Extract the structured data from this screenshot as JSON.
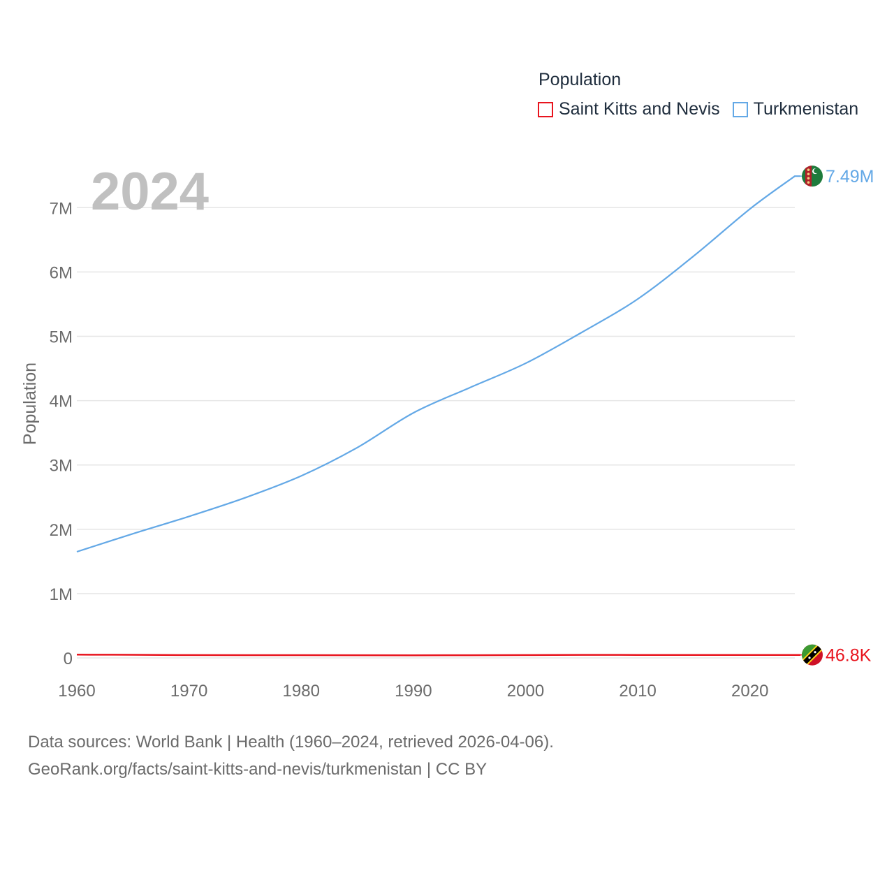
{
  "chart_data": {
    "type": "line",
    "title": "",
    "year_label": "2024",
    "ylabel": "Population",
    "xlabel": "",
    "xlim": [
      1960,
      2024
    ],
    "ylim": [
      0,
      7500000
    ],
    "x_ticks": [
      1960,
      1970,
      1980,
      1990,
      2000,
      2010,
      2020
    ],
    "x_tick_labels": [
      "1960",
      "1970",
      "1980",
      "1990",
      "2000",
      "2010",
      "2020"
    ],
    "y_ticks": [
      0,
      1000000,
      2000000,
      3000000,
      4000000,
      5000000,
      6000000,
      7000000
    ],
    "y_tick_labels": [
      "0",
      "1M",
      "2M",
      "3M",
      "4M",
      "5M",
      "6M",
      "7M"
    ],
    "legend_title": "Population",
    "legend_position": "top-right",
    "grid": true,
    "series": [
      {
        "name": "Saint Kitts and Nevis",
        "color": "#e8141e",
        "end_label": "46.8K",
        "x": [
          1960,
          1965,
          1970,
          1975,
          1980,
          1985,
          1990,
          1995,
          2000,
          2005,
          2010,
          2015,
          2020,
          2024
        ],
        "values": [
          51000,
          49000,
          45000,
          43000,
          43000,
          42000,
          41000,
          42000,
          45000,
          48000,
          47000,
          47000,
          47000,
          46800
        ]
      },
      {
        "name": "Turkmenistan",
        "color": "#63a8e6",
        "end_label": "7.49M",
        "x": [
          1960,
          1965,
          1970,
          1975,
          1980,
          1985,
          1990,
          1995,
          2000,
          2005,
          2010,
          2015,
          2020,
          2024
        ],
        "values": [
          1650000,
          1930000,
          2200000,
          2490000,
          2830000,
          3270000,
          3810000,
          4200000,
          4580000,
          5060000,
          5580000,
          6250000,
          6980000,
          7490000
        ]
      }
    ]
  },
  "footer": {
    "line1": "Data sources: World Bank | Health (1960–2024, retrieved 2026-04-06).",
    "line2": "GeoRank.org/facts/saint-kitts-and-nevis/turkmenistan | CC BY"
  }
}
